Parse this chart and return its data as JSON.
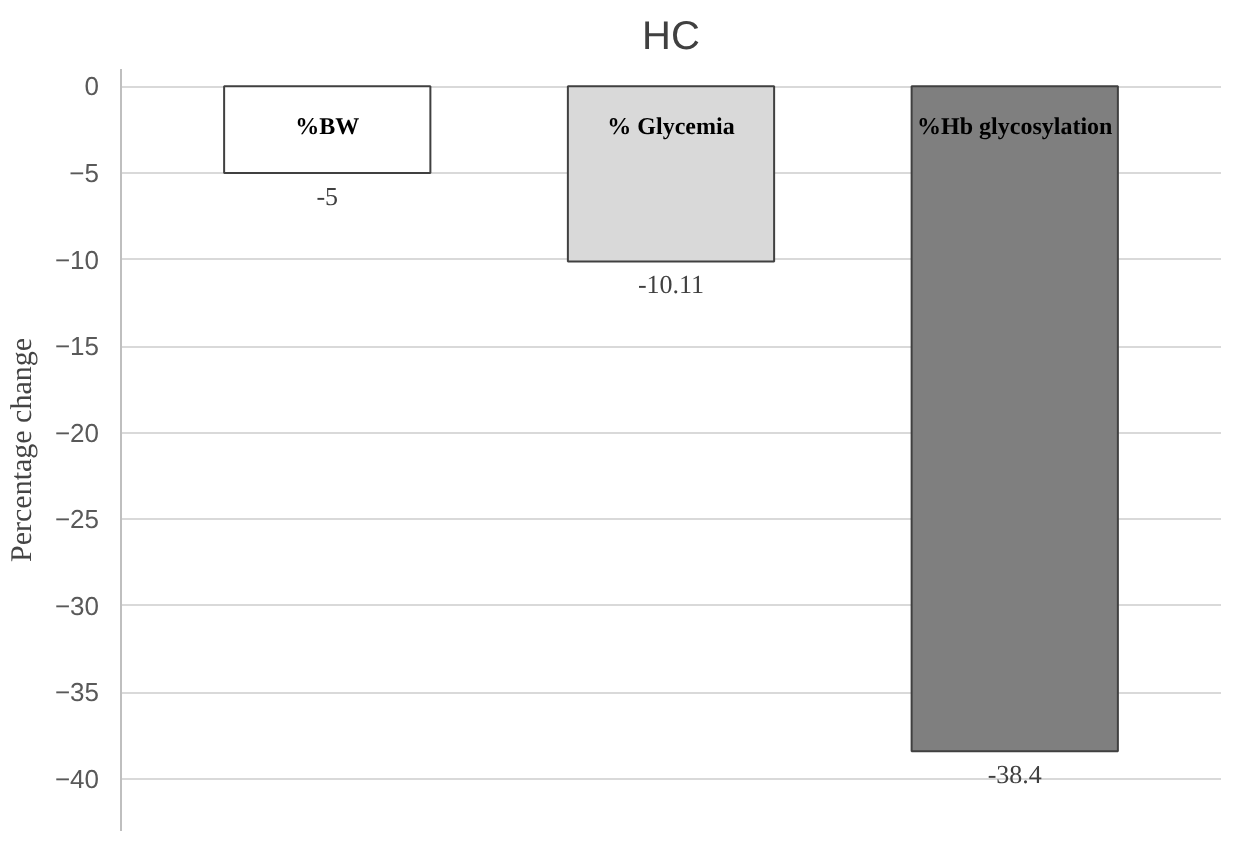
{
  "chart_data": {
    "type": "bar",
    "title": "HC",
    "ylabel": "Percentage change",
    "categories": [
      "%BW",
      "% Glycemia",
      "%Hb glycosylation"
    ],
    "values": [
      -5,
      -10.11,
      -38.4
    ],
    "colors": [
      "#ffffff",
      "#d9d9d9",
      "#7f7f7f"
    ],
    "data_labels": true,
    "ylim": [
      -43,
      1
    ],
    "yticks": [
      0,
      -5,
      -10,
      -15,
      -20,
      -25,
      -30,
      -35,
      -40
    ],
    "grid": "y"
  }
}
